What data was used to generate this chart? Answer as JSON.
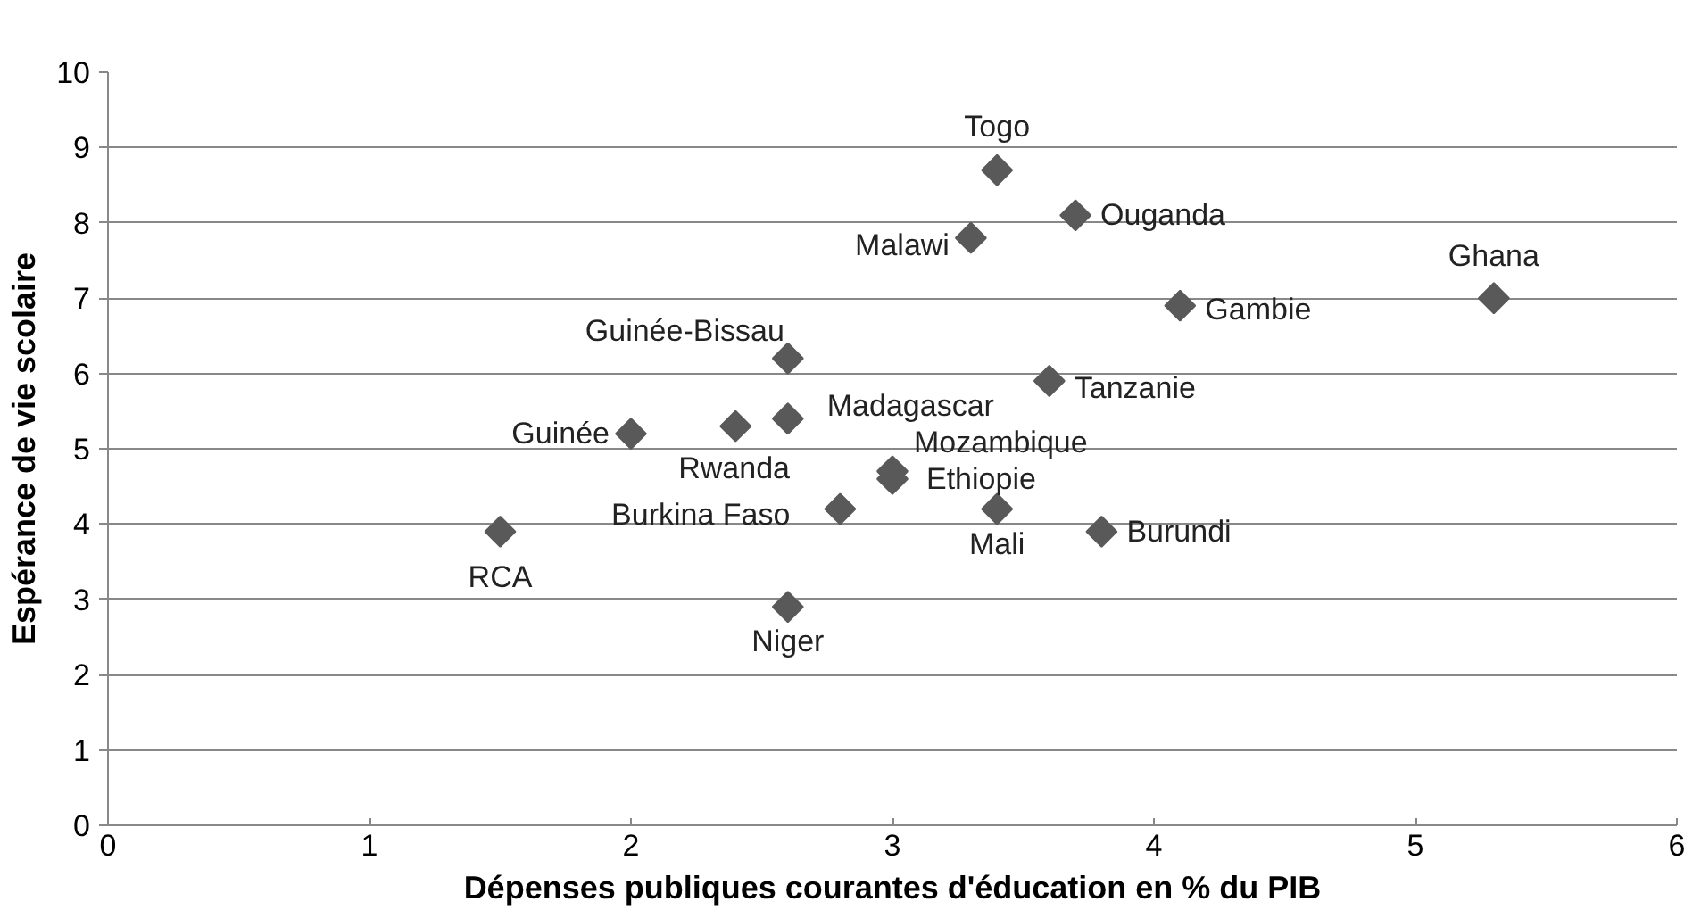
{
  "chart_data": {
    "type": "scatter",
    "xlabel": "Dépenses publiques courantes d'éducation en % du PIB",
    "ylabel": "Espérance de vie scolaire",
    "x": [
      3.4,
      3.7,
      3.3,
      5.3,
      4.1,
      2.6,
      3.6,
      2.6,
      2.0,
      2.4,
      3.0,
      3.0,
      2.8,
      3.4,
      3.8,
      1.5,
      2.6
    ],
    "series": [
      {
        "color": "#595959",
        "values": [
          8.7,
          8.1,
          7.8,
          7.0,
          6.9,
          6.2,
          5.9,
          5.4,
          5.2,
          5.3,
          4.7,
          4.6,
          4.2,
          4.2,
          3.9,
          3.9,
          2.9
        ]
      }
    ],
    "annotations": [
      {
        "text": "Togo",
        "x": 3.4,
        "y": 8.7
      },
      {
        "text": "Ouganda",
        "x": 3.7,
        "y": 8.1
      },
      {
        "text": "Malawi",
        "x": 3.3,
        "y": 7.8
      },
      {
        "text": "Ghana",
        "x": 5.3,
        "y": 7.0
      },
      {
        "text": "Gambie",
        "x": 4.1,
        "y": 6.9
      },
      {
        "text": "Guinée-Bissau",
        "x": 2.6,
        "y": 6.2
      },
      {
        "text": "Tanzanie",
        "x": 3.6,
        "y": 5.9
      },
      {
        "text": "Madagascar",
        "x": 2.6,
        "y": 5.4
      },
      {
        "text": "Guinée",
        "x": 2.0,
        "y": 5.2
      },
      {
        "text": "Rwanda",
        "x": 2.4,
        "y": 5.3
      },
      {
        "text": "Mozambique",
        "x": 3.0,
        "y": 4.7
      },
      {
        "text": "Ethiopie",
        "x": 3.0,
        "y": 4.6
      },
      {
        "text": "Burkina Faso",
        "x": 2.8,
        "y": 4.2
      },
      {
        "text": "Mali",
        "x": 3.4,
        "y": 4.2
      },
      {
        "text": "Burundi",
        "x": 3.8,
        "y": 3.9
      },
      {
        "text": "RCA",
        "x": 1.5,
        "y": 3.9
      },
      {
        "text": "Niger",
        "x": 2.6,
        "y": 2.9
      }
    ],
    "xlim": [
      0,
      6
    ],
    "ylim": [
      0,
      10
    ],
    "xticks": [
      0,
      1,
      2,
      3,
      4,
      5,
      6
    ],
    "yticks": [
      0,
      1,
      2,
      3,
      4,
      5,
      6,
      7,
      8,
      9,
      10
    ],
    "grid": "y",
    "marker": "diamond"
  }
}
